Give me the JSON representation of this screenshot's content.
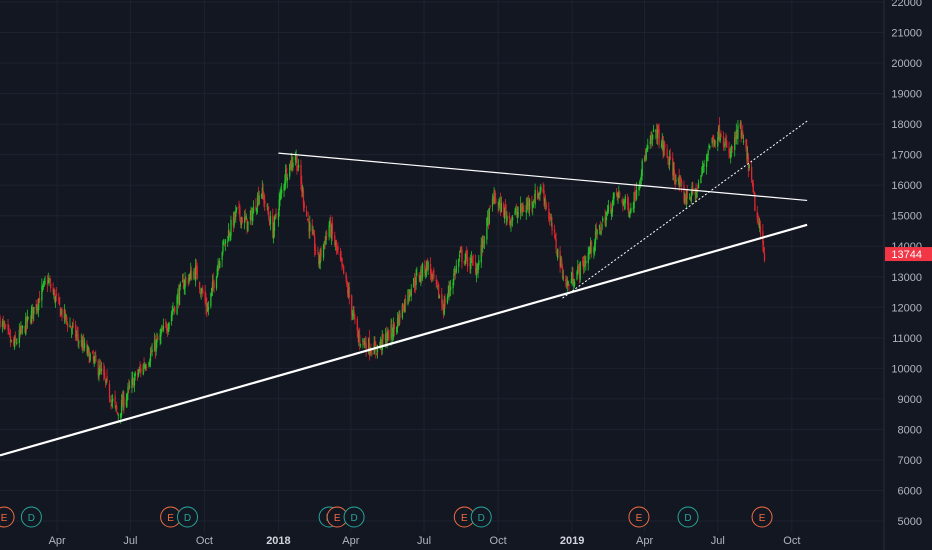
{
  "chart_data": {
    "type": "candlestick",
    "title": "",
    "xlabel": "",
    "ylabel": "",
    "ylim": [
      4700,
      22100
    ],
    "y_ticks": [
      5000,
      6000,
      7000,
      8000,
      9000,
      10000,
      11000,
      12000,
      13000,
      14000,
      15000,
      16000,
      17000,
      18000,
      19000,
      20000,
      21000,
      22000
    ],
    "x_ticks": [
      {
        "label": "Apr",
        "bold": false
      },
      {
        "label": "Jul",
        "bold": false
      },
      {
        "label": "Oct",
        "bold": false
      },
      {
        "label": "2018",
        "bold": true
      },
      {
        "label": "Apr",
        "bold": false
      },
      {
        "label": "Jul",
        "bold": false
      },
      {
        "label": "Oct",
        "bold": false
      },
      {
        "label": "2019",
        "bold": true
      },
      {
        "label": "Apr",
        "bold": false
      },
      {
        "label": "Jul",
        "bold": false
      },
      {
        "label": "Oct",
        "bold": false
      }
    ],
    "x_range": [
      "2017-01-20",
      "2019-11-05"
    ],
    "approx_close_path": [
      [
        "2017-01-20",
        11600
      ],
      [
        "2017-02-05",
        10700
      ],
      [
        "2017-02-25",
        11600
      ],
      [
        "2017-03-20",
        12900
      ],
      [
        "2017-04-05",
        11900
      ],
      [
        "2017-05-01",
        10800
      ],
      [
        "2017-05-25",
        9900
      ],
      [
        "2017-06-15",
        8500
      ],
      [
        "2017-07-05",
        9600
      ],
      [
        "2017-07-25",
        10400
      ],
      [
        "2017-08-15",
        11400
      ],
      [
        "2017-09-05",
        12800
      ],
      [
        "2017-09-20",
        13200
      ],
      [
        "2017-10-05",
        11900
      ],
      [
        "2017-10-20",
        13700
      ],
      [
        "2017-11-10",
        15100
      ],
      [
        "2017-11-25",
        14700
      ],
      [
        "2017-12-10",
        15900
      ],
      [
        "2017-12-25",
        14500
      ],
      [
        "2018-01-10",
        16400
      ],
      [
        "2018-01-22",
        17000
      ],
      [
        "2018-02-05",
        15000
      ],
      [
        "2018-02-20",
        13500
      ],
      [
        "2018-03-05",
        14700
      ],
      [
        "2018-03-25",
        12900
      ],
      [
        "2018-04-10",
        11000
      ],
      [
        "2018-05-01",
        10600
      ],
      [
        "2018-05-25",
        11300
      ],
      [
        "2018-06-15",
        12700
      ],
      [
        "2018-07-05",
        13400
      ],
      [
        "2018-07-25",
        12000
      ],
      [
        "2018-08-15",
        13700
      ],
      [
        "2018-09-05",
        13300
      ],
      [
        "2018-09-25",
        15600
      ],
      [
        "2018-10-15",
        14900
      ],
      [
        "2018-11-05",
        15300
      ],
      [
        "2018-11-25",
        15900
      ],
      [
        "2018-12-10",
        14200
      ],
      [
        "2018-12-25",
        12700
      ],
      [
        "2019-01-15",
        13400
      ],
      [
        "2019-02-05",
        14600
      ],
      [
        "2019-02-25",
        15700
      ],
      [
        "2019-03-15",
        15200
      ],
      [
        "2019-04-01",
        16900
      ],
      [
        "2019-04-15",
        17800
      ],
      [
        "2019-05-01",
        16800
      ],
      [
        "2019-05-20",
        15600
      ],
      [
        "2019-06-05",
        15800
      ],
      [
        "2019-06-20",
        17300
      ],
      [
        "2019-07-05",
        17800
      ],
      [
        "2019-07-15",
        16900
      ],
      [
        "2019-07-28",
        17900
      ],
      [
        "2019-08-08",
        16700
      ],
      [
        "2019-08-18",
        15000
      ],
      [
        "2019-08-28",
        13744
      ]
    ],
    "last_price": {
      "value": 13744,
      "label": "13744",
      "color": "#f23645"
    },
    "trendlines": [
      {
        "style": "solid-thick",
        "color": "#ffffff",
        "from": [
          "2017-01-20",
          7150
        ],
        "to": [
          "2019-10-20",
          14700
        ]
      },
      {
        "style": "solid-thin",
        "color": "#ffffff",
        "from": [
          "2018-01-01",
          17050
        ],
        "to": [
          "2019-10-20",
          15500
        ]
      },
      {
        "style": "dotted",
        "color": "#ffffff",
        "from": [
          "2018-12-20",
          12300
        ],
        "to": [
          "2019-10-20",
          18100
        ]
      }
    ],
    "events": [
      {
        "type": "E",
        "date": "2017-01-25",
        "color": "#f06c43"
      },
      {
        "type": "D",
        "date": "2017-02-28",
        "color": "#26a69a"
      },
      {
        "type": "E",
        "date": "2017-08-20",
        "color": "#f06c43"
      },
      {
        "type": "D",
        "date": "2017-09-10",
        "color": "#26a69a"
      },
      {
        "type": "E",
        "date": "2018-03-05",
        "color": "#26a69a"
      },
      {
        "type": "E",
        "date": "2018-03-15",
        "color": "#f06c43"
      },
      {
        "type": "D",
        "date": "2018-04-05",
        "color": "#26a69a"
      },
      {
        "type": "E",
        "date": "2018-08-20",
        "color": "#f06c43"
      },
      {
        "type": "D",
        "date": "2018-09-10",
        "color": "#26a69a"
      },
      {
        "type": "E",
        "date": "2019-03-25",
        "color": "#f06c43"
      },
      {
        "type": "D",
        "date": "2019-05-25",
        "color": "#26a69a"
      },
      {
        "type": "E",
        "date": "2019-08-25",
        "color": "#f06c43"
      }
    ],
    "grid": true,
    "colors": {
      "background": "#131722",
      "grid": "#1e2230",
      "up": "#26c12a",
      "down": "#e0262f",
      "text": "#b2b5be"
    }
  }
}
